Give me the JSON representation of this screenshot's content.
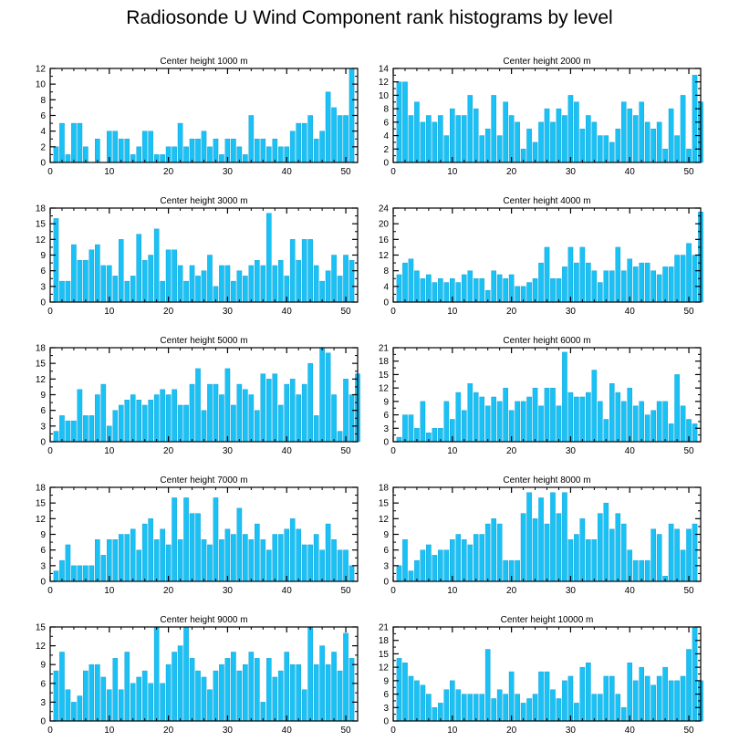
{
  "title": "Radiosonde U Wind Component rank histograms by level",
  "colors": {
    "bar": "#1ac1f5",
    "bar_edge": "#0b98d0",
    "axis": "#000000"
  },
  "chart_data": [
    {
      "type": "bar",
      "title": "Center height 1000 m",
      "xlim": [
        0,
        52
      ],
      "ylim": [
        0,
        12
      ],
      "xticks": [
        0,
        10,
        20,
        30,
        40,
        50
      ],
      "yticks": [
        0,
        2,
        4,
        6,
        8,
        10,
        12
      ],
      "values": [
        2,
        5,
        1,
        5,
        5,
        2,
        0,
        3,
        0,
        4,
        4,
        3,
        3,
        1,
        2,
        4,
        4,
        1,
        1,
        2,
        2,
        5,
        2,
        3,
        3,
        4,
        2,
        3,
        1,
        3,
        3,
        2,
        1,
        6,
        3,
        3,
        2,
        3,
        2,
        2,
        4,
        5,
        5,
        6,
        3,
        4,
        9,
        7,
        6,
        6,
        12
      ]
    },
    {
      "type": "bar",
      "title": "Center height 2000 m",
      "xlim": [
        0,
        52
      ],
      "ylim": [
        0,
        14
      ],
      "xticks": [
        0,
        10,
        20,
        30,
        40,
        50
      ],
      "yticks": [
        0,
        2,
        4,
        6,
        8,
        10,
        12,
        14
      ],
      "values": [
        12,
        12,
        7,
        9,
        6,
        7,
        6,
        7,
        4,
        8,
        7,
        7,
        10,
        8,
        4,
        5,
        10,
        4,
        9,
        7,
        6,
        2,
        5,
        3,
        6,
        8,
        6,
        8,
        7,
        10,
        9,
        5,
        7,
        6,
        4,
        4,
        3,
        5,
        9,
        8,
        7,
        9,
        6,
        5,
        6,
        2,
        8,
        4,
        10,
        2,
        13,
        9
      ]
    },
    {
      "type": "bar",
      "title": "Center height 3000 m",
      "xlim": [
        0,
        52
      ],
      "ylim": [
        0,
        18
      ],
      "xticks": [
        0,
        10,
        20,
        30,
        40,
        50
      ],
      "yticks": [
        0,
        3,
        6,
        9,
        12,
        15,
        18
      ],
      "values": [
        16,
        4,
        4,
        11,
        8,
        8,
        10,
        11,
        7,
        7,
        5,
        12,
        4,
        5,
        13,
        8,
        9,
        14,
        4,
        10,
        10,
        7,
        4,
        7,
        5,
        6,
        9,
        3,
        7,
        7,
        4,
        6,
        5,
        7,
        8,
        7,
        17,
        7,
        8,
        5,
        12,
        8,
        12,
        12,
        7,
        4,
        6,
        9,
        5,
        9,
        8
      ]
    },
    {
      "type": "bar",
      "title": "Center height 4000 m",
      "xlim": [
        0,
        52
      ],
      "ylim": [
        0,
        24
      ],
      "xticks": [
        0,
        10,
        20,
        30,
        40,
        50
      ],
      "yticks": [
        0,
        4,
        8,
        12,
        16,
        20,
        24
      ],
      "values": [
        7,
        10,
        11,
        8,
        6,
        7,
        5,
        6,
        5,
        6,
        5,
        7,
        8,
        6,
        6,
        3,
        8,
        7,
        6,
        7,
        4,
        4,
        5,
        6,
        10,
        14,
        6,
        6,
        9,
        14,
        10,
        14,
        10,
        8,
        5,
        8,
        8,
        14,
        8,
        11,
        9,
        10,
        10,
        8,
        7,
        9,
        9,
        12,
        12,
        15,
        12,
        23
      ]
    },
    {
      "type": "bar",
      "title": "Center height 5000 m",
      "xlim": [
        0,
        52
      ],
      "ylim": [
        0,
        18
      ],
      "xticks": [
        0,
        10,
        20,
        30,
        40,
        50
      ],
      "yticks": [
        0,
        3,
        6,
        9,
        12,
        15,
        18
      ],
      "values": [
        2,
        5,
        4,
        4,
        10,
        5,
        5,
        9,
        11,
        3,
        6,
        7,
        8,
        9,
        8,
        7,
        8,
        9,
        10,
        9,
        10,
        7,
        7,
        11,
        14,
        6,
        11,
        11,
        9,
        14,
        7,
        11,
        10,
        9,
        6,
        13,
        12,
        13,
        7,
        11,
        12,
        9,
        11,
        15,
        5,
        18,
        17,
        9,
        2,
        12,
        9,
        13
      ]
    },
    {
      "type": "bar",
      "title": "Center height 6000 m",
      "xlim": [
        0,
        52
      ],
      "ylim": [
        0,
        21
      ],
      "xticks": [
        0,
        10,
        20,
        30,
        40,
        50
      ],
      "yticks": [
        0,
        3,
        6,
        9,
        12,
        15,
        18,
        21
      ],
      "values": [
        1,
        6,
        6,
        3,
        9,
        2,
        3,
        3,
        9,
        5,
        11,
        7,
        13,
        11,
        10,
        8,
        10,
        9,
        12,
        7,
        9,
        9,
        10,
        12,
        8,
        12,
        12,
        8,
        20,
        11,
        10,
        10,
        11,
        16,
        9,
        5,
        13,
        11,
        9,
        12,
        8,
        9,
        6,
        7,
        9,
        9,
        4,
        15,
        8,
        5,
        4
      ]
    },
    {
      "type": "bar",
      "title": "Center height 7000 m",
      "xlim": [
        0,
        52
      ],
      "ylim": [
        0,
        18
      ],
      "xticks": [
        0,
        10,
        20,
        30,
        40,
        50
      ],
      "yticks": [
        0,
        3,
        6,
        9,
        12,
        15,
        18
      ],
      "values": [
        2,
        4,
        7,
        3,
        3,
        3,
        3,
        8,
        5,
        8,
        8,
        9,
        9,
        10,
        6,
        11,
        12,
        8,
        10,
        7,
        16,
        8,
        16,
        13,
        13,
        8,
        7,
        16,
        8,
        10,
        9,
        14,
        9,
        8,
        11,
        8,
        6,
        9,
        9,
        10,
        12,
        10,
        7,
        7,
        9,
        6,
        11,
        8,
        6,
        6,
        3
      ]
    },
    {
      "type": "bar",
      "title": "Center height 8000 m",
      "xlim": [
        0,
        52
      ],
      "ylim": [
        0,
        18
      ],
      "xticks": [
        0,
        10,
        20,
        30,
        40,
        50
      ],
      "yticks": [
        0,
        3,
        6,
        9,
        12,
        15,
        18
      ],
      "values": [
        3,
        8,
        2,
        4,
        6,
        7,
        5,
        6,
        6,
        8,
        9,
        8,
        7,
        9,
        9,
        11,
        12,
        11,
        4,
        4,
        4,
        13,
        17,
        12,
        16,
        11,
        17,
        13,
        17,
        8,
        9,
        12,
        8,
        8,
        13,
        15,
        10,
        13,
        11,
        6,
        4,
        4,
        4,
        10,
        9,
        1,
        11,
        10,
        6,
        10,
        11
      ]
    },
    {
      "type": "bar",
      "title": "Center height 9000 m",
      "xlim": [
        0,
        52
      ],
      "ylim": [
        0,
        15
      ],
      "xticks": [
        0,
        10,
        20,
        30,
        40,
        50
      ],
      "yticks": [
        0,
        3,
        6,
        9,
        12,
        15
      ],
      "values": [
        8,
        11,
        5,
        3,
        4,
        8,
        9,
        9,
        7,
        5,
        10,
        5,
        11,
        6,
        7,
        8,
        6,
        15,
        6,
        9,
        11,
        12,
        15,
        10,
        8,
        7,
        5,
        8,
        9,
        10,
        11,
        8,
        9,
        11,
        10,
        3,
        10,
        7,
        8,
        11,
        9,
        9,
        5,
        15,
        9,
        12,
        9,
        11,
        8,
        14,
        10
      ]
    },
    {
      "type": "bar",
      "title": "Center height 10000 m",
      "xlim": [
        0,
        52
      ],
      "ylim": [
        0,
        21
      ],
      "xticks": [
        0,
        10,
        20,
        30,
        40,
        50
      ],
      "yticks": [
        0,
        3,
        6,
        9,
        12,
        15,
        18,
        21
      ],
      "values": [
        14,
        13,
        10,
        9,
        8,
        6,
        3,
        4,
        7,
        9,
        7,
        6,
        6,
        6,
        6,
        16,
        5,
        7,
        6,
        11,
        6,
        4,
        5,
        6,
        11,
        11,
        7,
        5,
        9,
        10,
        4,
        12,
        13,
        6,
        6,
        10,
        10,
        6,
        3,
        13,
        9,
        12,
        10,
        8,
        10,
        12,
        9,
        9,
        10,
        16,
        21,
        9
      ]
    }
  ]
}
